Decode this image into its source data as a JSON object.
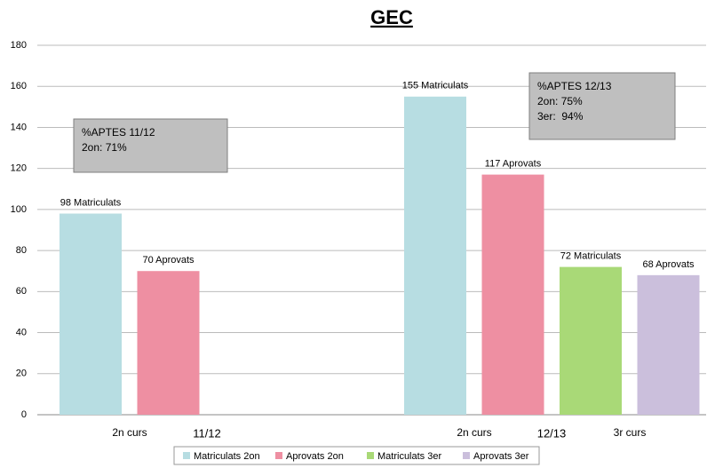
{
  "chart_data": {
    "type": "bar",
    "title": "GEC",
    "categories": [
      "11/12",
      "12/13"
    ],
    "subgroups": [
      [
        "2n curs"
      ],
      [
        "2n curs",
        "3r curs"
      ]
    ],
    "series": [
      {
        "name": "Matriculats 2on",
        "color": "#b7dde2",
        "values": [
          98,
          155
        ],
        "value_labels": [
          "98 Matriculats",
          "155 Matriculats"
        ]
      },
      {
        "name": "Aprovats 2on",
        "color": "#ee8fa2",
        "values": [
          70,
          117
        ],
        "value_labels": [
          "70 Aprovats",
          "117 Aprovats"
        ]
      },
      {
        "name": "Matriculats 3er",
        "color": "#a9d977",
        "values": [
          null,
          72
        ],
        "value_labels": [
          null,
          "72 Matriculats"
        ]
      },
      {
        "name": "Aprovats 3er",
        "color": "#cbbfdc",
        "values": [
          null,
          68
        ],
        "value_labels": [
          null,
          "68 Aprovats"
        ]
      }
    ],
    "annotations": [
      [
        "%APTES 11/12",
        "2on: 71%"
      ],
      [
        "%APTES 12/13",
        "2on: 75%",
        "3er:  94%"
      ]
    ],
    "ylim": [
      0,
      180
    ],
    "yticks": [
      0,
      20,
      40,
      60,
      80,
      100,
      120,
      140,
      160,
      180
    ],
    "grid": true,
    "legend": "bottom"
  }
}
